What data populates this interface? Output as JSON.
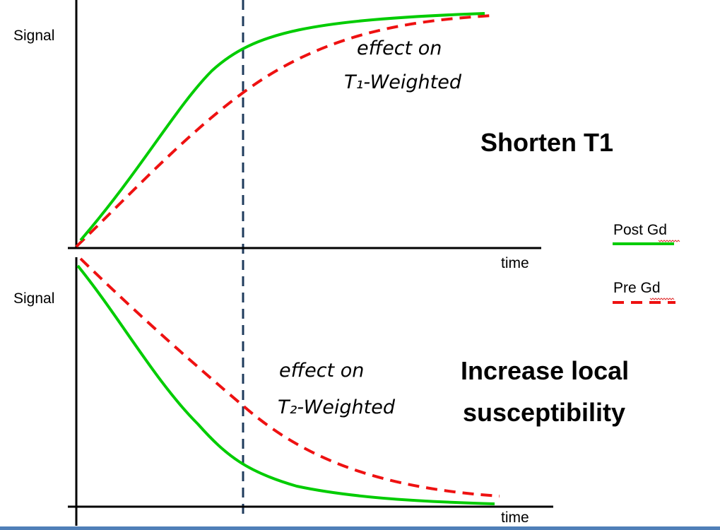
{
  "colors": {
    "post": "#00cc00",
    "pre": "#ee1111",
    "axis": "#000000",
    "divider": "#1f3b5c",
    "bottom_bar": "#4f7fb8"
  },
  "top_panel": {
    "ylabel": "Signal",
    "xlabel": "time",
    "annotation_line1": "effect on",
    "annotation_line2": "T₁-Weighted",
    "heading": "Shorten T1"
  },
  "bottom_panel": {
    "ylabel": "Signal",
    "xlabel": "time",
    "annotation_line1": "effect on",
    "annotation_line2": "T₂-Weighted",
    "heading_line1": "Increase local",
    "heading_line2": "susceptibility"
  },
  "legend": {
    "post_label": "Post Gd",
    "pre_label": "Pre Gd"
  }
}
